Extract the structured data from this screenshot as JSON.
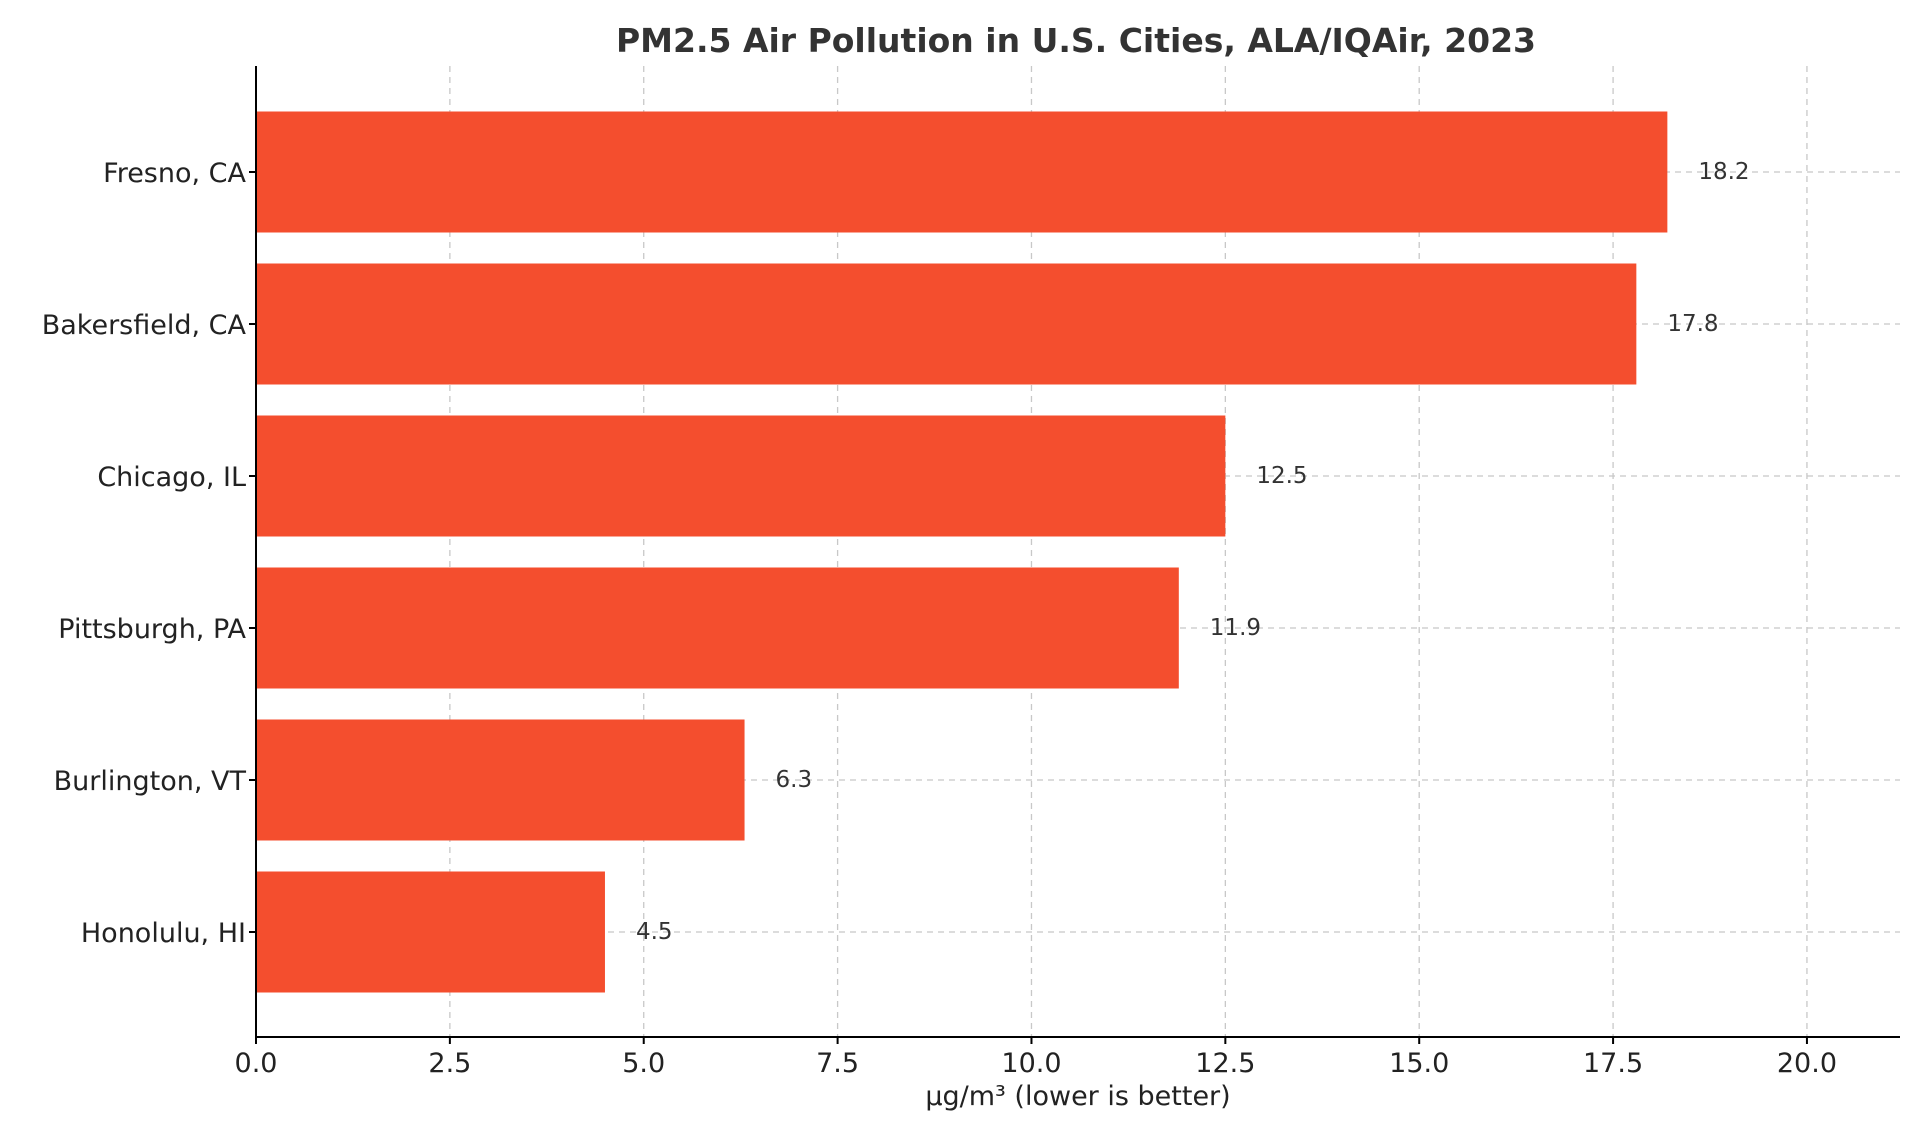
{
  "chart_data": {
    "type": "bar",
    "orientation": "horizontal",
    "title": "PM2.5 Air Pollution in U.S. Cities, ALA/IQAir, 2023",
    "xlabel": "µg/m³ (lower is better)",
    "ylabel": "",
    "categories": [
      "Fresno, CA",
      "Bakersfield, CA",
      "Chicago, IL",
      "Pittsburgh, PA",
      "Burlington, VT",
      "Honolulu, HI"
    ],
    "values": [
      18.2,
      17.8,
      12.5,
      11.9,
      6.3,
      4.5
    ],
    "value_labels": [
      "18.2",
      "17.8",
      "12.5",
      "11.9",
      "6.3",
      "4.5"
    ],
    "xlim": [
      0,
      21.2
    ],
    "xticks": [
      "0.0",
      "2.5",
      "5.0",
      "7.5",
      "10.0",
      "12.5",
      "15.0",
      "17.5",
      "20.0"
    ],
    "grid": true,
    "bar_color": "#f44e2e"
  }
}
